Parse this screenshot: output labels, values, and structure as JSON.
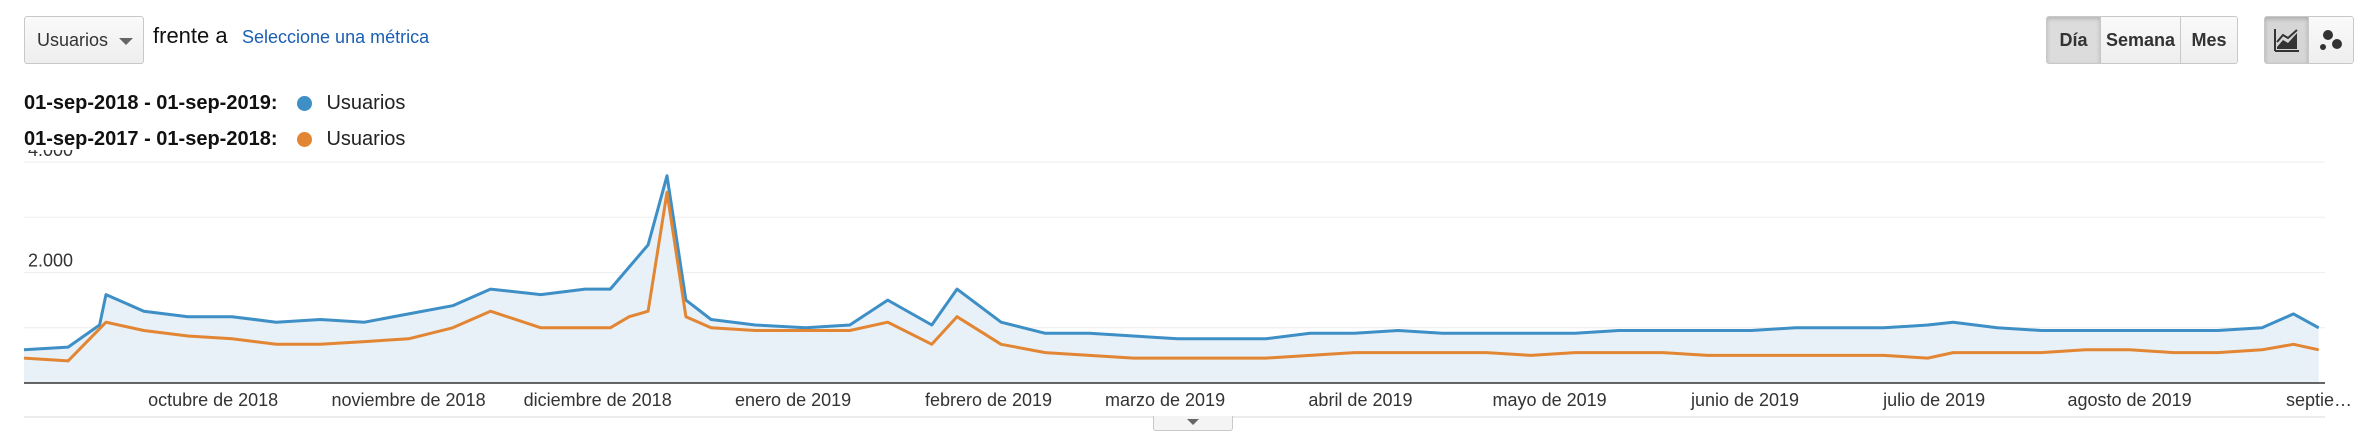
{
  "controls": {
    "metric_select": "Usuarios",
    "versus": "frente a",
    "choose_metric": "Seleccione una métrica",
    "periods": [
      "Día",
      "Semana",
      "Mes"
    ],
    "active_period": "Día",
    "view_icons": [
      "line-chart-icon",
      "motion-chart-icon"
    ]
  },
  "chart_data": {
    "type": "area",
    "title": "",
    "xlabel": "",
    "ylabel": "",
    "ylim": [
      0,
      4000
    ],
    "yticks": [
      {
        "value": 4000,
        "label": "4.000"
      },
      {
        "value": 2000,
        "label": "2.000"
      }
    ],
    "x_start": "2018-09-01",
    "x_end": "2019-09-01",
    "month_ticks": [
      {
        "date": "2018-10-01",
        "label": "octubre de 2018"
      },
      {
        "date": "2018-11-01",
        "label": "noviembre de 2018"
      },
      {
        "date": "2018-12-01",
        "label": "diciembre de 2018"
      },
      {
        "date": "2019-01-01",
        "label": "enero de 2019"
      },
      {
        "date": "2019-02-01",
        "label": "febrero de 2019"
      },
      {
        "date": "2019-03-01",
        "label": "marzo de 2019"
      },
      {
        "date": "2019-04-01",
        "label": "abril de 2019"
      },
      {
        "date": "2019-05-01",
        "label": "mayo de 2019"
      },
      {
        "date": "2019-06-01",
        "label": "junio de 2019"
      },
      {
        "date": "2019-07-01",
        "label": "julio de 2019"
      },
      {
        "date": "2019-08-01",
        "label": "agosto de 2019"
      },
      {
        "date": "2019-09-01",
        "label": "septie…"
      }
    ],
    "legend": "top-left",
    "grid": true,
    "series": [
      {
        "name": "Usuarios",
        "range": "01-sep-2018 - 01-sep-2019:",
        "color": "#3d8fc6",
        "fill": true,
        "points": [
          [
            "2018-09-01",
            600
          ],
          [
            "2018-09-08",
            650
          ],
          [
            "2018-09-13",
            1050
          ],
          [
            "2018-09-14",
            1600
          ],
          [
            "2018-09-20",
            1300
          ],
          [
            "2018-09-27",
            1200
          ],
          [
            "2018-10-04",
            1200
          ],
          [
            "2018-10-11",
            1100
          ],
          [
            "2018-10-18",
            1150
          ],
          [
            "2018-10-25",
            1100
          ],
          [
            "2018-11-01",
            1250
          ],
          [
            "2018-11-08",
            1400
          ],
          [
            "2018-11-14",
            1700
          ],
          [
            "2018-11-22",
            1600
          ],
          [
            "2018-11-29",
            1700
          ],
          [
            "2018-12-03",
            1700
          ],
          [
            "2018-12-06",
            2100
          ],
          [
            "2018-12-09",
            2500
          ],
          [
            "2018-12-12",
            3750
          ],
          [
            "2018-12-15",
            1500
          ],
          [
            "2018-12-19",
            1150
          ],
          [
            "2018-12-26",
            1050
          ],
          [
            "2019-01-03",
            1000
          ],
          [
            "2019-01-10",
            1050
          ],
          [
            "2019-01-16",
            1500
          ],
          [
            "2019-01-23",
            1050
          ],
          [
            "2019-01-27",
            1700
          ],
          [
            "2019-02-03",
            1100
          ],
          [
            "2019-02-10",
            900
          ],
          [
            "2019-02-17",
            900
          ],
          [
            "2019-02-24",
            850
          ],
          [
            "2019-03-03",
            800
          ],
          [
            "2019-03-10",
            800
          ],
          [
            "2019-03-17",
            800
          ],
          [
            "2019-03-24",
            900
          ],
          [
            "2019-03-31",
            900
          ],
          [
            "2019-04-07",
            950
          ],
          [
            "2019-04-14",
            900
          ],
          [
            "2019-04-21",
            900
          ],
          [
            "2019-04-28",
            900
          ],
          [
            "2019-05-05",
            900
          ],
          [
            "2019-05-12",
            950
          ],
          [
            "2019-05-19",
            950
          ],
          [
            "2019-05-26",
            950
          ],
          [
            "2019-06-02",
            950
          ],
          [
            "2019-06-09",
            1000
          ],
          [
            "2019-06-16",
            1000
          ],
          [
            "2019-06-23",
            1000
          ],
          [
            "2019-06-30",
            1050
          ],
          [
            "2019-07-04",
            1100
          ],
          [
            "2019-07-11",
            1000
          ],
          [
            "2019-07-18",
            950
          ],
          [
            "2019-07-25",
            950
          ],
          [
            "2019-08-01",
            950
          ],
          [
            "2019-08-08",
            950
          ],
          [
            "2019-08-15",
            950
          ],
          [
            "2019-08-22",
            1000
          ],
          [
            "2019-08-27",
            1250
          ],
          [
            "2019-08-31",
            1000
          ]
        ]
      },
      {
        "name": "Usuarios",
        "range": "01-sep-2017 - 01-sep-2018:",
        "color": "#e28633",
        "fill": false,
        "points": [
          [
            "2018-09-01",
            450
          ],
          [
            "2018-09-08",
            400
          ],
          [
            "2018-09-14",
            1100
          ],
          [
            "2018-09-20",
            950
          ],
          [
            "2018-09-27",
            850
          ],
          [
            "2018-10-04",
            800
          ],
          [
            "2018-10-11",
            700
          ],
          [
            "2018-10-18",
            700
          ],
          [
            "2018-10-25",
            750
          ],
          [
            "2018-11-01",
            800
          ],
          [
            "2018-11-08",
            1000
          ],
          [
            "2018-11-14",
            1300
          ],
          [
            "2018-11-22",
            1000
          ],
          [
            "2018-11-29",
            1000
          ],
          [
            "2018-12-03",
            1000
          ],
          [
            "2018-12-06",
            1200
          ],
          [
            "2018-12-09",
            1300
          ],
          [
            "2018-12-12",
            3450
          ],
          [
            "2018-12-15",
            1200
          ],
          [
            "2018-12-19",
            1000
          ],
          [
            "2018-12-26",
            950
          ],
          [
            "2019-01-03",
            950
          ],
          [
            "2019-01-10",
            950
          ],
          [
            "2019-01-16",
            1100
          ],
          [
            "2019-01-23",
            700
          ],
          [
            "2019-01-27",
            1200
          ],
          [
            "2019-02-03",
            700
          ],
          [
            "2019-02-10",
            550
          ],
          [
            "2019-02-17",
            500
          ],
          [
            "2019-02-24",
            450
          ],
          [
            "2019-03-03",
            450
          ],
          [
            "2019-03-10",
            450
          ],
          [
            "2019-03-17",
            450
          ],
          [
            "2019-03-24",
            500
          ],
          [
            "2019-03-31",
            550
          ],
          [
            "2019-04-07",
            550
          ],
          [
            "2019-04-14",
            550
          ],
          [
            "2019-04-21",
            550
          ],
          [
            "2019-04-28",
            500
          ],
          [
            "2019-05-05",
            550
          ],
          [
            "2019-05-12",
            550
          ],
          [
            "2019-05-19",
            550
          ],
          [
            "2019-05-26",
            500
          ],
          [
            "2019-06-02",
            500
          ],
          [
            "2019-06-09",
            500
          ],
          [
            "2019-06-16",
            500
          ],
          [
            "2019-06-23",
            500
          ],
          [
            "2019-06-30",
            450
          ],
          [
            "2019-07-04",
            550
          ],
          [
            "2019-07-11",
            550
          ],
          [
            "2019-07-18",
            550
          ],
          [
            "2019-07-25",
            600
          ],
          [
            "2019-08-01",
            600
          ],
          [
            "2019-08-08",
            550
          ],
          [
            "2019-08-15",
            550
          ],
          [
            "2019-08-22",
            600
          ],
          [
            "2019-08-27",
            700
          ],
          [
            "2019-08-31",
            600
          ]
        ]
      }
    ]
  }
}
